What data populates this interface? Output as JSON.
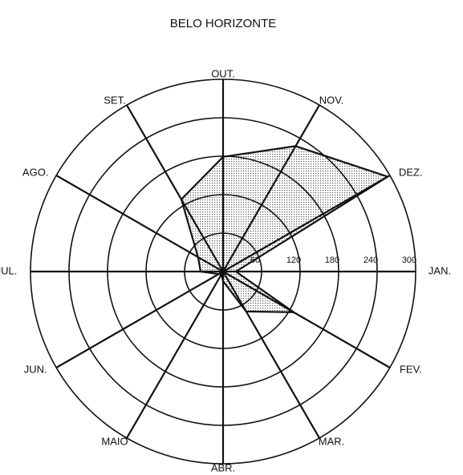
{
  "chart_data": {
    "type": "radar",
    "title": "BELO HORIZONTE",
    "categories": [
      "JAN.",
      "FEV.",
      "MAR.",
      "ABR.",
      "MAIO",
      "JUN.",
      "JUL.",
      "AGO.",
      "SET.",
      "OUT.",
      "NOV.",
      "DEZ."
    ],
    "values": [
      20,
      127,
      72,
      15,
      5,
      8,
      35,
      45,
      130,
      179,
      226,
      296
    ],
    "color": "#555555",
    "rlim": [
      0,
      300
    ],
    "rticks": [
      60,
      120,
      180,
      240,
      300
    ]
  }
}
